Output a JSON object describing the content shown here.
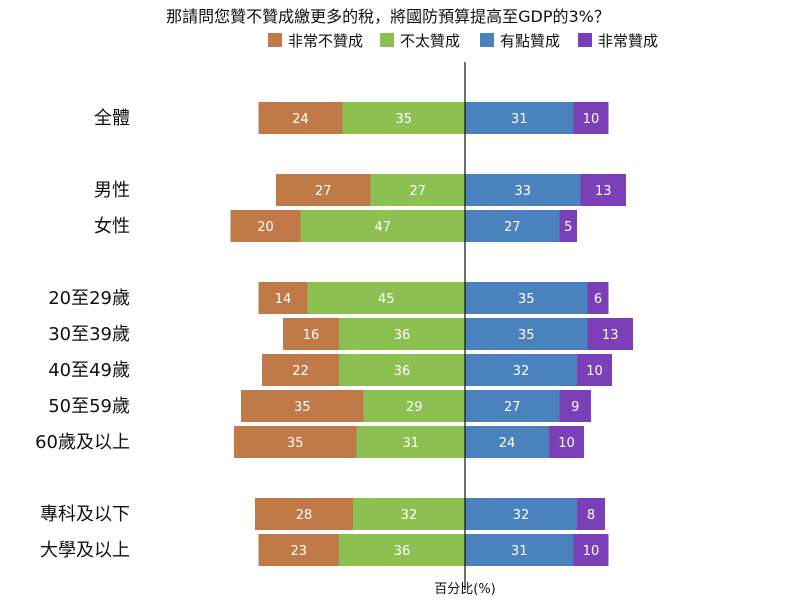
{
  "chart_data": {
    "type": "bar",
    "orientation": "horizontal-diverging",
    "stacked": true,
    "title": "那請問您贊不贊成繳更多的稅，將國防預算提高至GDP的3%？",
    "xlabel": "百分比(%)",
    "categories": [
      "全體",
      "男性",
      "女性",
      "20至29歲",
      "30至39歲",
      "40至49歲",
      "50至59歲",
      "60歲及以上",
      "專科及以下",
      "大學及以上"
    ],
    "groups": [
      [
        0
      ],
      [
        1,
        2
      ],
      [
        3,
        4,
        5,
        6,
        7
      ],
      [
        8,
        9
      ]
    ],
    "series": [
      {
        "name": "非常不贊成",
        "side": "negative",
        "color": "#c07a47",
        "values": [
          24,
          27,
          20,
          14,
          16,
          22,
          35,
          35,
          28,
          23
        ]
      },
      {
        "name": "不太贊成",
        "side": "negative",
        "color": "#8cc152",
        "values": [
          35,
          27,
          47,
          45,
          36,
          36,
          29,
          31,
          32,
          36
        ]
      },
      {
        "name": "有點贊成",
        "side": "positive",
        "color": "#4a82be",
        "values": [
          31,
          33,
          27,
          35,
          35,
          32,
          27,
          24,
          32,
          31
        ]
      },
      {
        "name": "非常贊成",
        "side": "positive",
        "color": "#7b3fb8",
        "values": [
          10,
          13,
          5,
          6,
          13,
          10,
          9,
          10,
          8,
          10
        ]
      }
    ],
    "legend": {
      "placement": "top",
      "order": [
        0,
        1,
        2,
        3
      ]
    },
    "grid": false
  }
}
